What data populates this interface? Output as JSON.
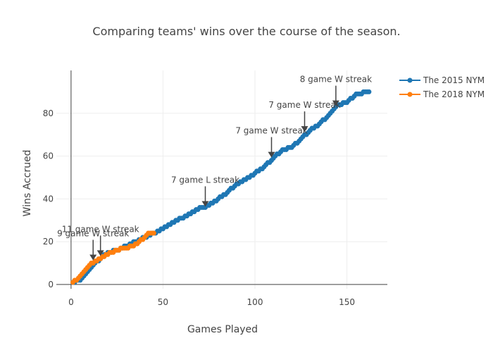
{
  "chart_data": {
    "type": "line",
    "title": "Comparing teams' wins over the course of the season.",
    "xlabel": "Games Played",
    "ylabel": "Wins Accrued",
    "xlim": [
      -8,
      172
    ],
    "ylim": [
      -2,
      100
    ],
    "xticks": [
      0,
      50,
      100,
      150
    ],
    "yticks": [
      0,
      20,
      40,
      60,
      80
    ],
    "grid": true,
    "legend_position": "top-right",
    "series": [
      {
        "name": "The 2015 NYM",
        "color": "#1f77b4",
        "x": [
          1,
          5,
          13,
          20,
          25,
          30,
          35,
          40,
          45,
          50,
          55,
          60,
          65,
          70,
          73,
          75,
          80,
          85,
          90,
          95,
          100,
          105,
          110,
          115,
          120,
          125,
          130,
          135,
          140,
          145,
          150,
          155,
          162
        ],
        "y": [
          1,
          2,
          10,
          15,
          16,
          18,
          20,
          22,
          24,
          26,
          29,
          31,
          33,
          36,
          36,
          37,
          40,
          43,
          47,
          49,
          52,
          55,
          59,
          63,
          64,
          68,
          72,
          75,
          79,
          84,
          85,
          89,
          90
        ]
      },
      {
        "name": "The 2018 NYM",
        "color": "#ff7f0e",
        "x": [
          1,
          3,
          5,
          8,
          10,
          12,
          14,
          16,
          18,
          20,
          22,
          25,
          28,
          30,
          33,
          36,
          40,
          42,
          45
        ],
        "y": [
          1,
          2,
          4,
          7,
          9,
          10,
          11,
          12,
          13,
          14,
          15,
          16,
          17,
          17,
          18,
          19,
          22,
          24,
          24
        ]
      }
    ],
    "annotations": [
      {
        "text": "9 game W streak",
        "x": 12,
        "y": 11
      },
      {
        "text": "11 game W streak",
        "x": 16,
        "y": 13
      },
      {
        "text": "7 game L streak",
        "x": 73,
        "y": 36
      },
      {
        "text": "7 game W streak",
        "x": 109,
        "y": 59
      },
      {
        "text": "7 game W streak",
        "x": 127,
        "y": 71
      },
      {
        "text": "8 game W streak",
        "x": 144,
        "y": 83
      }
    ]
  }
}
